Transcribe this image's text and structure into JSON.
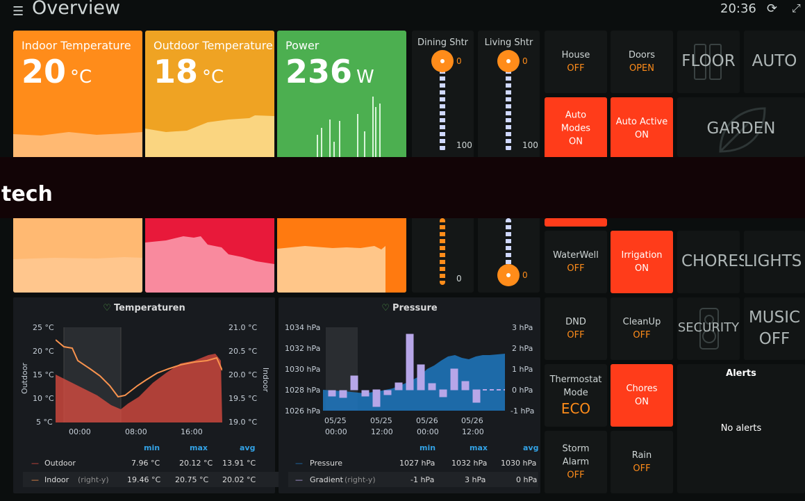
{
  "header": {
    "title": "Overview",
    "time": "20:36",
    "menu_icon": "menu-icon",
    "refresh_icon": "refresh-icon",
    "expand_icon": "fullscreen-icon"
  },
  "tiles": [
    {
      "label": "Indoor Temperature",
      "value": "20",
      "unit": "°C"
    },
    {
      "label": "Outdoor Temperature",
      "value": "18",
      "unit": "°C"
    },
    {
      "label": "Power",
      "value": "236",
      "unit": "W"
    }
  ],
  "shutters": [
    {
      "label": "Dining Shtr",
      "top_value": "0",
      "bottom_value": "100",
      "bottom2_value": "0"
    },
    {
      "label": "Living Shtr",
      "top_value": "0",
      "bottom_value": "100",
      "bottom2_value": "0"
    }
  ],
  "buttons": {
    "house": {
      "name": "House",
      "state": "OFF"
    },
    "doors": {
      "name": "Doors",
      "state": "OPEN"
    },
    "auto_modes": {
      "name1": "Auto",
      "name2": "Modes",
      "state": "ON"
    },
    "auto_active": {
      "name": "Auto Active",
      "state": "ON"
    },
    "waterwell": {
      "name": "WaterWell",
      "state": "OFF"
    },
    "irrigation": {
      "name": "Irrigation",
      "state": "ON"
    },
    "dnd": {
      "name": "DND",
      "state": "OFF"
    },
    "cleanup": {
      "name": "CleanUp",
      "state": "OFF"
    },
    "thermostat": {
      "name1": "Thermostat",
      "name2": "Mode",
      "state": "ECO"
    },
    "chores": {
      "name": "Chores",
      "state": "ON"
    },
    "storm": {
      "name1": "Storm",
      "name2": "Alarm",
      "state": "OFF"
    },
    "rain": {
      "name": "Rain",
      "state": "OFF"
    }
  },
  "nav": {
    "floor": "FLOOR",
    "auto": "AUTO",
    "garden": "GARDEN",
    "chores": "CHORES",
    "lights": "LIGHTS",
    "security": "SECURITY",
    "music": "MUSIC",
    "music_state": "OFF"
  },
  "overlay": {
    "text": "tech"
  },
  "alerts": {
    "title": "Alerts",
    "empty": "No alerts"
  },
  "temp_panel": {
    "title": "Temperaturen",
    "y_left_label": "Outdoor",
    "y_right_label": "Indoor",
    "y_left_ticks": [
      "25 °C",
      "20 °C",
      "15 °C",
      "10 °C",
      "5 °C"
    ],
    "y_right_ticks": [
      "21.0 °C",
      "20.5 °C",
      "20.0 °C",
      "19.5 °C",
      "19.0 °C"
    ],
    "x_ticks": [
      "00:00",
      "08:00",
      "16:00"
    ],
    "legend_headers": [
      "min",
      "max",
      "avg"
    ],
    "legend": [
      {
        "name": "Outdoor",
        "suffix": "",
        "color": "#e24d42",
        "min": "7.96 °C",
        "max": "20.12 °C",
        "avg": "13.91 °C"
      },
      {
        "name": "Indoor",
        "suffix": "(right-y)",
        "color": "#f9934e",
        "min": "19.46 °C",
        "max": "20.75 °C",
        "avg": "20.02 °C"
      }
    ]
  },
  "pressure_panel": {
    "title": "Pressure",
    "y_left_ticks": [
      "1034 hPa",
      "1032 hPa",
      "1030 hPa",
      "1028 hPa",
      "1026 hPa"
    ],
    "y_right_ticks": [
      "3 hPa",
      "2 hPa",
      "1 hPa",
      "0 hPa",
      "-1 hPa"
    ],
    "x_ticks": [
      [
        "05/25",
        "00:00"
      ],
      [
        "05/25",
        "12:00"
      ],
      [
        "05/26",
        "00:00"
      ],
      [
        "05/26",
        "12:00"
      ]
    ],
    "legend_headers": [
      "min",
      "max",
      "avg"
    ],
    "legend": [
      {
        "name": "Pressure",
        "suffix": "",
        "color": "#1f78c1",
        "min": "1027 hPa",
        "max": "1032 hPa",
        "avg": "1030 hPa"
      },
      {
        "name": "Gradient",
        "suffix": "(right-y)",
        "color": "#b7a6e8",
        "min": "-1 hPa",
        "max": "3 hPa",
        "avg": "0 hPa"
      }
    ]
  },
  "colors": {
    "accent_on": "#ff3c1a",
    "state_orange": "#ff8c1a",
    "tile_indoor": "#ff8c1a",
    "tile_outdoor": "#f0a020",
    "tile_power": "#4caf50"
  }
}
